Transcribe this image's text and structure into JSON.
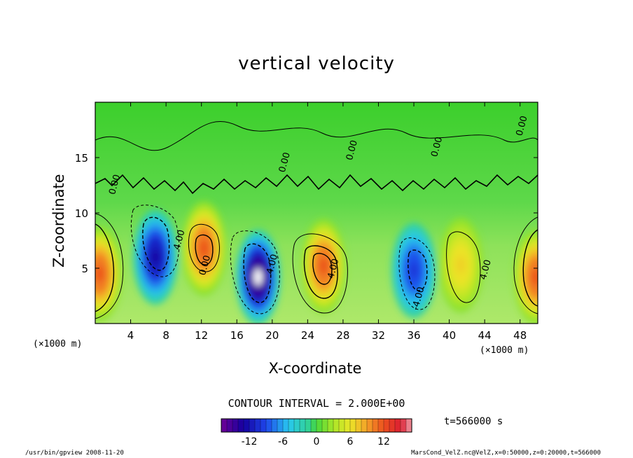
{
  "chart_data": {
    "type": "heatmap",
    "title": "vertical velocity",
    "xlabel": "X-coordinate",
    "ylabel": "Z-coordinate",
    "x_unit": "(×1000 m)",
    "y_unit": "(×1000 m)",
    "xlim": [
      0,
      50
    ],
    "ylim": [
      0,
      20
    ],
    "x_ticks": [
      "4",
      "8",
      "12",
      "16",
      "20",
      "24",
      "28",
      "32",
      "36",
      "40",
      "44",
      "48"
    ],
    "y_ticks": [
      "5",
      "10",
      "15"
    ],
    "contour_interval": "CONTOUR INTERVAL = 2.000E+00",
    "contour_labels": [
      "0.00",
      "4.00",
      "-4.00"
    ],
    "colorbar": {
      "ticks": [
        "-12",
        "-6",
        "0",
        "6",
        "12"
      ],
      "range": [
        -17,
        17
      ]
    },
    "cells": [
      {
        "x": 0.5,
        "z": 4.5,
        "w": 12
      },
      {
        "x": 6.8,
        "z": 6.0,
        "w": -13
      },
      {
        "x": 12.3,
        "z": 6.8,
        "w": 12
      },
      {
        "x": 18.4,
        "z": 4.2,
        "w": -17
      },
      {
        "x": 25.8,
        "z": 5.2,
        "w": 12
      },
      {
        "x": 36.0,
        "z": 4.8,
        "w": -10
      },
      {
        "x": 41.3,
        "z": 5.3,
        "w": 7
      },
      {
        "x": 49.8,
        "z": 4.2,
        "w": 12
      }
    ],
    "time_label": "t=566000 s"
  },
  "footer": {
    "left": "/usr/bin/gpview   2008-11-20",
    "right": "MarsCond_VelZ.nc@VelZ,x=0:50000,z=0:20000,t=566000"
  }
}
